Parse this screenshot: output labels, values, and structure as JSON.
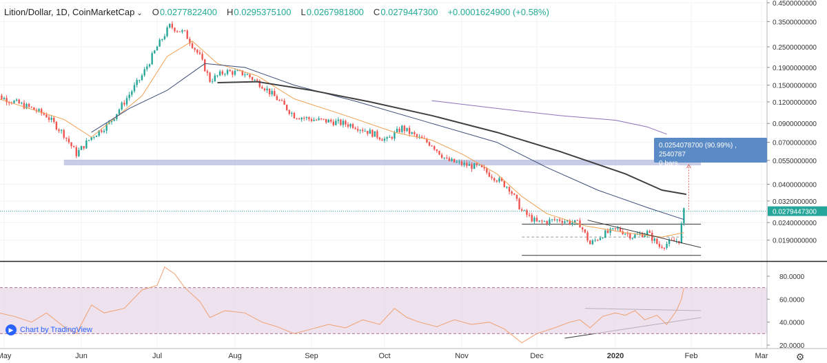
{
  "header": {
    "symbol": "Lition/Dollar, 1D, CoinMarketCap",
    "ohlc": [
      {
        "label": "O",
        "value": "0.0277822400"
      },
      {
        "label": "H",
        "value": "0.0295375100"
      },
      {
        "label": "L",
        "value": "0.0267981800"
      },
      {
        "label": "C",
        "value": "0.0279447300"
      }
    ],
    "change": "+0.0001624900 (+0.58%)"
  },
  "branding": {
    "label": "Chart by TradingView"
  },
  "measure": {
    "line1": "0.0254078700 (90.99%) , 2540787",
    "line2": "0 bars,"
  },
  "colors": {
    "up": "#26a69a",
    "down": "#ef5350",
    "ma_short": "#f0a050",
    "ma_mid": "#3b4d78",
    "ma_long": "#404040",
    "ma_xlong": "#8b6fb8",
    "zone": "#9aa3d0",
    "rsi": "#f0a070",
    "rsi_band": "#e8d8ea",
    "price_label": "#26a69a"
  },
  "chart_data": [
    {
      "type": "candlestick",
      "scale": "log",
      "ylim": [
        0.0145,
        0.45
      ],
      "x_axis_labels": [
        "May",
        "Jun",
        "Jul",
        "Aug",
        "Sep",
        "Oct",
        "Nov",
        "Dec",
        "2020",
        "Feb",
        "Mar"
      ],
      "y_ticks": [
        "0.4500000000",
        "0.3500000000",
        "0.2500000000",
        "0.1900000000",
        "0.1500000000",
        "0.1200000000",
        "0.0900000000",
        "0.0700000000",
        "0.0550000000",
        "0.0400000000",
        "0.0320000000",
        "0.0240000000",
        "0.0190000000"
      ],
      "y_tick_values": [
        0.45,
        0.35,
        0.25,
        0.19,
        0.15,
        0.12,
        0.09,
        0.07,
        0.055,
        0.04,
        0.032,
        0.024,
        0.019
      ],
      "last_price_label": "0.0279447300",
      "last_price": 0.0279447,
      "close_path": [
        [
          "2019-04-25",
          0.135
        ],
        [
          "2019-05-05",
          0.12
        ],
        [
          "2019-05-12",
          0.11
        ],
        [
          "2019-05-18",
          0.1
        ],
        [
          "2019-05-25",
          0.078
        ],
        [
          "2019-05-30",
          0.06
        ],
        [
          "2019-06-05",
          0.075
        ],
        [
          "2019-06-12",
          0.09
        ],
        [
          "2019-06-18",
          0.12
        ],
        [
          "2019-06-25",
          0.17
        ],
        [
          "2019-07-01",
          0.25
        ],
        [
          "2019-07-06",
          0.33
        ],
        [
          "2019-07-12",
          0.3
        ],
        [
          "2019-07-18",
          0.22
        ],
        [
          "2019-07-22",
          0.16
        ],
        [
          "2019-07-28",
          0.18
        ],
        [
          "2019-08-05",
          0.175
        ],
        [
          "2019-08-12",
          0.15
        ],
        [
          "2019-08-18",
          0.125
        ],
        [
          "2019-08-25",
          0.1
        ],
        [
          "2019-09-01",
          0.095
        ],
        [
          "2019-09-10",
          0.092
        ],
        [
          "2019-09-18",
          0.088
        ],
        [
          "2019-09-25",
          0.08
        ],
        [
          "2019-10-02",
          0.072
        ],
        [
          "2019-10-08",
          0.085
        ],
        [
          "2019-10-14",
          0.075
        ],
        [
          "2019-10-20",
          0.068
        ],
        [
          "2019-10-26",
          0.055
        ],
        [
          "2019-11-02",
          0.052
        ],
        [
          "2019-11-08",
          0.05
        ],
        [
          "2019-11-14",
          0.044
        ],
        [
          "2019-11-20",
          0.038
        ],
        [
          "2019-11-25",
          0.028
        ],
        [
          "2019-12-01",
          0.024
        ],
        [
          "2019-12-10",
          0.025
        ],
        [
          "2019-12-18",
          0.0235
        ],
        [
          "2019-12-22",
          0.018
        ],
        [
          "2019-12-27",
          0.0205
        ],
        [
          "2020-01-02",
          0.022
        ],
        [
          "2020-01-08",
          0.02
        ],
        [
          "2020-01-14",
          0.021
        ],
        [
          "2020-01-19",
          0.0175
        ],
        [
          "2020-01-24",
          0.0185
        ],
        [
          "2020-01-27",
          0.019
        ],
        [
          "2020-01-28",
          0.0232
        ],
        [
          "2020-01-29",
          0.0279
        ]
      ],
      "ma_short": [
        [
          "2019-04-25",
          0.13
        ],
        [
          "2019-05-25",
          0.095
        ],
        [
          "2019-06-05",
          0.075
        ],
        [
          "2019-06-25",
          0.13
        ],
        [
          "2019-07-05",
          0.22
        ],
        [
          "2019-07-15",
          0.27
        ],
        [
          "2019-07-25",
          0.2
        ],
        [
          "2019-08-10",
          0.17
        ],
        [
          "2019-08-25",
          0.125
        ],
        [
          "2019-09-15",
          0.1
        ],
        [
          "2019-10-05",
          0.08
        ],
        [
          "2019-10-20",
          0.072
        ],
        [
          "2019-11-01",
          0.06
        ],
        [
          "2019-11-15",
          0.046
        ],
        [
          "2019-11-25",
          0.034
        ],
        [
          "2019-12-05",
          0.027
        ],
        [
          "2019-12-20",
          0.023
        ],
        [
          "2020-01-05",
          0.021
        ],
        [
          "2020-01-20",
          0.0198
        ],
        [
          "2020-01-29",
          0.021
        ]
      ],
      "ma_mid": [
        [
          "2019-06-05",
          0.08
        ],
        [
          "2019-06-20",
          0.11
        ],
        [
          "2019-07-05",
          0.14
        ],
        [
          "2019-07-20",
          0.2
        ],
        [
          "2019-08-05",
          0.19
        ],
        [
          "2019-08-25",
          0.15
        ],
        [
          "2019-09-20",
          0.12
        ],
        [
          "2019-10-20",
          0.09
        ],
        [
          "2019-11-15",
          0.07
        ],
        [
          "2019-12-05",
          0.05
        ],
        [
          "2019-12-25",
          0.037
        ],
        [
          "2020-01-15",
          0.029
        ],
        [
          "2020-01-29",
          0.025
        ]
      ],
      "ma_long": [
        [
          "2019-07-25",
          0.155
        ],
        [
          "2019-08-10",
          0.157
        ],
        [
          "2019-09-01",
          0.14
        ],
        [
          "2019-09-25",
          0.12
        ],
        [
          "2019-10-20",
          0.1
        ],
        [
          "2019-11-15",
          0.08
        ],
        [
          "2019-12-10",
          0.062
        ],
        [
          "2020-01-05",
          0.046
        ],
        [
          "2020-01-20",
          0.037
        ],
        [
          "2020-01-30",
          0.035
        ]
      ],
      "ma_xlong": [
        [
          "2019-10-20",
          0.122
        ],
        [
          "2019-11-15",
          0.11
        ],
        [
          "2019-12-10",
          0.1
        ],
        [
          "2020-01-01",
          0.094
        ],
        [
          "2020-01-14",
          0.086
        ],
        [
          "2020-01-22",
          0.078
        ]
      ],
      "zone": {
        "from": "2019-05-25",
        "to": "2020-02-05",
        "low": 0.0515,
        "high": 0.0555
      },
      "horizontal_levels": [
        {
          "from": "2019-11-25",
          "to": "2020-02-05",
          "value": 0.0235
        },
        {
          "from": "2019-11-25",
          "to": "2020-02-05",
          "value": 0.0155
        },
        {
          "from": "2019-11-25",
          "to": "2020-01-30",
          "value": 0.0198,
          "dashed": true
        }
      ],
      "trend_lines": [
        {
          "x1": "2019-12-21",
          "y1": 0.0248,
          "x2": "2020-02-05",
          "y2": 0.0172
        }
      ],
      "measure_arrow": {
        "x": "2020-01-31",
        "from": 0.0285,
        "to": 0.052
      }
    },
    {
      "type": "line",
      "name": "RSI",
      "ylim": [
        17,
        92
      ],
      "y_ticks": [
        "80.0000",
        "60.0000",
        "40.0000",
        "20.0000"
      ],
      "y_tick_values": [
        80,
        60,
        40,
        20
      ],
      "bands": [
        30,
        70
      ],
      "points": [
        [
          "2019-04-25",
          50
        ],
        [
          "2019-05-05",
          45
        ],
        [
          "2019-05-12",
          40
        ],
        [
          "2019-05-18",
          48
        ],
        [
          "2019-05-25",
          36
        ],
        [
          "2019-05-30",
          30
        ],
        [
          "2019-06-05",
          55
        ],
        [
          "2019-06-10",
          48
        ],
        [
          "2019-06-18",
          52
        ],
        [
          "2019-06-25",
          68
        ],
        [
          "2019-07-01",
          72
        ],
        [
          "2019-07-04",
          88
        ],
        [
          "2019-07-08",
          82
        ],
        [
          "2019-07-12",
          70
        ],
        [
          "2019-07-18",
          58
        ],
        [
          "2019-07-22",
          44
        ],
        [
          "2019-07-28",
          50
        ],
        [
          "2019-08-05",
          48
        ],
        [
          "2019-08-12",
          40
        ],
        [
          "2019-08-18",
          36
        ],
        [
          "2019-08-25",
          30
        ],
        [
          "2019-09-01",
          34
        ],
        [
          "2019-09-08",
          38
        ],
        [
          "2019-09-15",
          35
        ],
        [
          "2019-09-22",
          42
        ],
        [
          "2019-09-29",
          38
        ],
        [
          "2019-10-05",
          52
        ],
        [
          "2019-10-10",
          44
        ],
        [
          "2019-10-15",
          40
        ],
        [
          "2019-10-22",
          36
        ],
        [
          "2019-10-29",
          42
        ],
        [
          "2019-11-05",
          38
        ],
        [
          "2019-11-12",
          40
        ],
        [
          "2019-11-18",
          34
        ],
        [
          "2019-11-25",
          22
        ],
        [
          "2019-12-01",
          30
        ],
        [
          "2019-12-08",
          35
        ],
        [
          "2019-12-14",
          40
        ],
        [
          "2019-12-18",
          42
        ],
        [
          "2019-12-22",
          35
        ],
        [
          "2019-12-27",
          45
        ],
        [
          "2020-01-01",
          48
        ],
        [
          "2020-01-05",
          46
        ],
        [
          "2020-01-09",
          50
        ],
        [
          "2020-01-13",
          42
        ],
        [
          "2020-01-18",
          46
        ],
        [
          "2020-01-22",
          38
        ],
        [
          "2020-01-26",
          50
        ],
        [
          "2020-01-28",
          60
        ],
        [
          "2020-01-29",
          70
        ]
      ],
      "trend_lines": [
        {
          "x1": "2019-12-20",
          "y1": 52,
          "x2": "2020-02-05",
          "y2": 50
        },
        {
          "x1": "2019-12-12",
          "y1": 26,
          "x2": "2020-02-05",
          "y2": 44
        }
      ]
    }
  ]
}
